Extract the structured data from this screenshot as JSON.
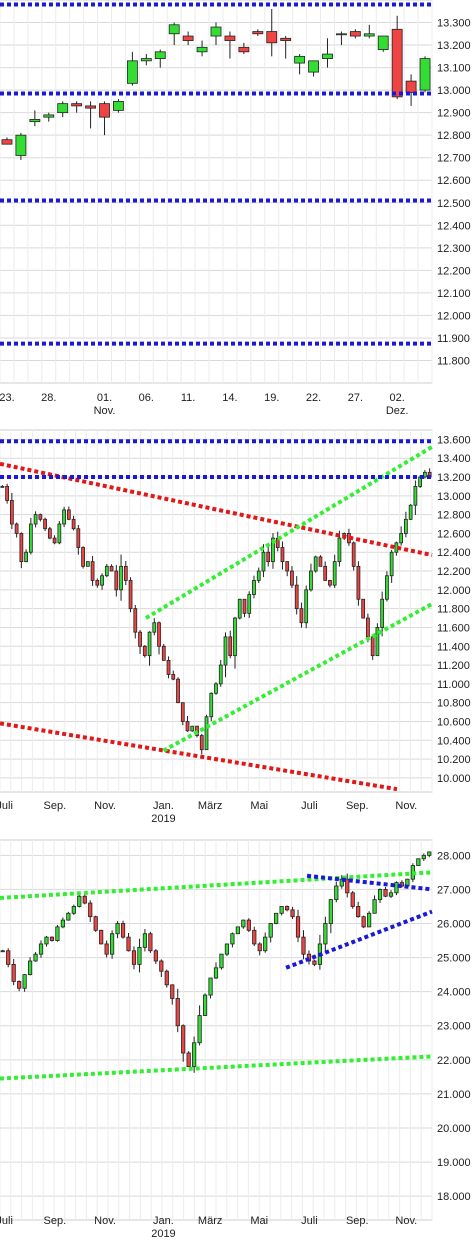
{
  "colors": {
    "up": "#33dd33",
    "down": "#ee4444",
    "wick": "#222222",
    "grid": "#d9d9d9",
    "blue_line": "#1a1ad6",
    "red_line": "#e01818",
    "green_line": "#33ee33"
  },
  "chart_data": [
    {
      "type": "candlestick",
      "ylim": [
        11700,
        13400
      ],
      "grid": true,
      "y_ticks": [
        "13.300",
        "13.200",
        "13.100",
        "13.000",
        "12.900",
        "12.800",
        "12.700",
        "12.600",
        "12.500",
        "12.400",
        "12.300",
        "12.200",
        "12.100",
        "12.000",
        "11.900",
        "11.800"
      ],
      "y_tick_values": [
        13300,
        13200,
        13100,
        13000,
        12900,
        12800,
        12700,
        12600,
        12500,
        12400,
        12300,
        12200,
        12100,
        12000,
        11900,
        11800
      ],
      "x_ticks": [
        {
          "label": "23.",
          "i": 0
        },
        {
          "label": "28.",
          "i": 3
        },
        {
          "label": "01.",
          "sub": "Nov.",
          "i": 7
        },
        {
          "label": "06.",
          "i": 10
        },
        {
          "label": "11.",
          "i": 13
        },
        {
          "label": "14.",
          "i": 16
        },
        {
          "label": "19.",
          "i": 19
        },
        {
          "label": "22.",
          "i": 22
        },
        {
          "label": "27.",
          "i": 25
        },
        {
          "label": "02.",
          "sub": "Dez.",
          "i": 28
        }
      ],
      "n_slots": 31,
      "candles": [
        {
          "o": 12780,
          "h": 12790,
          "l": 12770,
          "c": 12760
        },
        {
          "o": 12710,
          "h": 12810,
          "l": 12690,
          "c": 12800
        },
        {
          "o": 12860,
          "h": 12910,
          "l": 12840,
          "c": 12870
        },
        {
          "o": 12880,
          "h": 12900,
          "l": 12860,
          "c": 12890
        },
        {
          "o": 12900,
          "h": 12950,
          "l": 12880,
          "c": 12940
        },
        {
          "o": 12940,
          "h": 12950,
          "l": 12900,
          "c": 12930
        },
        {
          "o": 12930,
          "h": 12950,
          "l": 12830,
          "c": 12920
        },
        {
          "o": 12940,
          "h": 12950,
          "l": 12800,
          "c": 12880
        },
        {
          "o": 12910,
          "h": 12960,
          "l": 12900,
          "c": 12950
        },
        {
          "o": 13030,
          "h": 13170,
          "l": 13020,
          "c": 13130
        },
        {
          "o": 13130,
          "h": 13160,
          "l": 13110,
          "c": 13140
        },
        {
          "o": 13140,
          "h": 13180,
          "l": 13100,
          "c": 13170
        },
        {
          "o": 13250,
          "h": 13300,
          "l": 13200,
          "c": 13290
        },
        {
          "o": 13240,
          "h": 13260,
          "l": 13200,
          "c": 13220
        },
        {
          "o": 13170,
          "h": 13220,
          "l": 13150,
          "c": 13190
        },
        {
          "o": 13240,
          "h": 13300,
          "l": 13200,
          "c": 13280
        },
        {
          "o": 13240,
          "h": 13260,
          "l": 13140,
          "c": 13220
        },
        {
          "o": 13190,
          "h": 13210,
          "l": 13160,
          "c": 13170
        },
        {
          "o": 13260,
          "h": 13270,
          "l": 13240,
          "c": 13250
        },
        {
          "o": 13260,
          "h": 13360,
          "l": 13150,
          "c": 13210
        },
        {
          "o": 13230,
          "h": 13240,
          "l": 13140,
          "c": 13220
        },
        {
          "o": 13120,
          "h": 13160,
          "l": 13070,
          "c": 13150
        },
        {
          "o": 13080,
          "h": 13130,
          "l": 13060,
          "c": 13130
        },
        {
          "o": 13140,
          "h": 13230,
          "l": 13100,
          "c": 13160
        },
        {
          "o": 13250,
          "h": 13260,
          "l": 13200,
          "c": 13250
        },
        {
          "o": 13260,
          "h": 13270,
          "l": 13230,
          "c": 13240
        },
        {
          "o": 13240,
          "h": 13290,
          "l": 13230,
          "c": 13250
        },
        {
          "o": 13180,
          "h": 13230,
          "l": 13170,
          "c": 13240
        },
        {
          "o": 13270,
          "h": 13330,
          "l": 12960,
          "c": 12970
        },
        {
          "o": 13040,
          "h": 13070,
          "l": 12930,
          "c": 12990
        },
        {
          "o": 13000,
          "h": 13150,
          "l": 12990,
          "c": 13140
        }
      ],
      "hlines": [
        {
          "y": 13380,
          "color": "blue"
        },
        {
          "y": 12985,
          "color": "blue"
        },
        {
          "y": 12510,
          "color": "blue"
        },
        {
          "y": 11875,
          "color": "blue"
        }
      ]
    },
    {
      "type": "candlestick",
      "ylim": [
        9850,
        13700
      ],
      "grid": true,
      "y_ticks": [
        "13.600",
        "13.400",
        "13.200",
        "13.000",
        "12.800",
        "12.600",
        "12.400",
        "12.200",
        "12.000",
        "11.800",
        "11.600",
        "11.400",
        "11.200",
        "11.000",
        "10.800",
        "10.600",
        "10.400",
        "10.200",
        "10.000"
      ],
      "y_tick_values": [
        13600,
        13400,
        13200,
        13000,
        12800,
        12600,
        12400,
        12200,
        12000,
        11800,
        11600,
        11400,
        11200,
        11000,
        10800,
        10600,
        10400,
        10200,
        10000
      ],
      "x_ticks": [
        {
          "label": "Juli",
          "i": 4
        },
        {
          "label": "Sep.",
          "i": 47
        },
        {
          "label": "Nov.",
          "i": 90
        },
        {
          "label": "Jan.",
          "sub": "2019",
          "i": 140
        },
        {
          "label": "März",
          "i": 180
        },
        {
          "label": "Mai",
          "i": 222
        },
        {
          "label": "Juli",
          "i": 265
        },
        {
          "label": "Sep.",
          "i": 306
        },
        {
          "label": "Nov.",
          "i": 348
        }
      ],
      "n_slots": 370,
      "trendlines": [
        {
          "color": "red",
          "points": [
            [
              0,
              13340
            ],
            [
              370,
              12370
            ]
          ]
        },
        {
          "color": "red",
          "points": [
            [
              0,
              10580
            ],
            [
              340,
              9880
            ]
          ]
        },
        {
          "color": "green",
          "points": [
            [
              125,
              11700
            ],
            [
              370,
              13520
            ]
          ]
        },
        {
          "color": "green",
          "points": [
            [
              140,
              10290
            ],
            [
              370,
              11850
            ]
          ]
        },
        {
          "color": "blue",
          "points": [
            [
              0,
              13580
            ],
            [
              370,
              13580
            ]
          ]
        },
        {
          "color": "blue",
          "points": [
            [
              0,
              13200
            ],
            [
              370,
              13200
            ]
          ]
        }
      ],
      "closes": [
        13100,
        12950,
        12700,
        12600,
        12300,
        12400,
        12700,
        12800,
        12750,
        12650,
        12550,
        12500,
        12700,
        12850,
        12750,
        12650,
        12450,
        12250,
        12300,
        12100,
        12050,
        12150,
        12250,
        12200,
        12000,
        12250,
        12100,
        11800,
        11550,
        11400,
        11300,
        11550,
        11650,
        11400,
        11250,
        11100,
        11050,
        10800,
        10600,
        10500,
        10550,
        10450,
        10300,
        10650,
        10900,
        11000,
        11200,
        11500,
        11300,
        11700,
        11900,
        11750,
        11950,
        12100,
        12200,
        12400,
        12300,
        12550,
        12450,
        12300,
        12200,
        12050,
        11800,
        11650,
        12000,
        12200,
        12350,
        12250,
        12100,
        12050,
        12300,
        12550,
        12600,
        12500,
        12250,
        11900,
        11700,
        11500,
        11300,
        11600,
        11900,
        12150,
        12400,
        12500,
        12600,
        12750,
        12900,
        13100,
        13200,
        13250,
        13200
      ]
    },
    {
      "type": "candlestick",
      "ylim": [
        17300,
        28450
      ],
      "grid": true,
      "y_ticks": [
        "28.000",
        "27.000",
        "26.000",
        "25.000",
        "24.000",
        "23.000",
        "22.000",
        "21.000",
        "20.000",
        "19.000",
        "18.000"
      ],
      "y_tick_values": [
        28000,
        27000,
        26000,
        25000,
        24000,
        23000,
        22000,
        21000,
        20000,
        19000,
        18000
      ],
      "x_ticks": [
        {
          "label": "Juli",
          "i": 4
        },
        {
          "label": "Sep.",
          "i": 47
        },
        {
          "label": "Nov.",
          "i": 90
        },
        {
          "label": "Jan.",
          "sub": "2019",
          "i": 140
        },
        {
          "label": "März",
          "i": 180
        },
        {
          "label": "Mai",
          "i": 222
        },
        {
          "label": "Juli",
          "i": 265
        },
        {
          "label": "Sep.",
          "i": 306
        },
        {
          "label": "Nov.",
          "i": 348
        }
      ],
      "n_slots": 370,
      "trendlines": [
        {
          "color": "green",
          "points": [
            [
              0,
              26750
            ],
            [
              370,
              27500
            ]
          ]
        },
        {
          "color": "green",
          "points": [
            [
              0,
              21450
            ],
            [
              370,
              22100
            ]
          ]
        },
        {
          "color": "blue",
          "points": [
            [
              245,
              24700
            ],
            [
              370,
              26350
            ]
          ]
        },
        {
          "color": "blue",
          "points": [
            [
              263,
              27400
            ],
            [
              370,
              27000
            ]
          ]
        }
      ],
      "closes": [
        25200,
        24800,
        24300,
        24100,
        24500,
        24900,
        25100,
        25400,
        25600,
        25500,
        25900,
        26100,
        26300,
        26500,
        26800,
        26600,
        26200,
        25800,
        25400,
        25100,
        25700,
        26000,
        25600,
        25200,
        24800,
        25300,
        25700,
        25200,
        24900,
        24600,
        24200,
        23800,
        23000,
        22200,
        21800,
        22500,
        23300,
        23900,
        24400,
        24700,
        25100,
        25400,
        25700,
        25900,
        26100,
        25800,
        25400,
        25200,
        25600,
        26000,
        26300,
        26500,
        26400,
        26200,
        25600,
        25100,
        24900,
        24800,
        25400,
        26000,
        26700,
        27100,
        27300,
        26900,
        26500,
        26200,
        25900,
        26300,
        26700,
        27000,
        26800,
        26900,
        27200,
        27100,
        27300,
        27700,
        27900,
        28000,
        28100
      ]
    }
  ]
}
